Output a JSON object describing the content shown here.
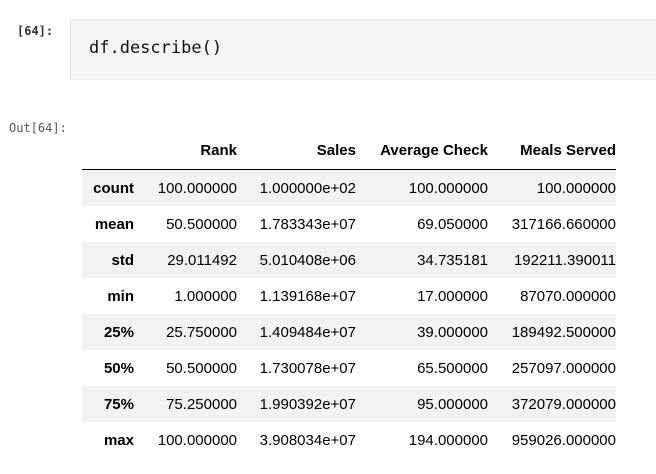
{
  "cell": {
    "in_prompt": "[64]:",
    "code": "df.describe()",
    "out_prompt": "Out[64]:"
  },
  "table": {
    "columns": [
      "",
      "Rank",
      "Sales",
      "Average Check",
      "Meals Served"
    ],
    "rows": [
      {
        "index": "count",
        "values": [
          "100.000000",
          "1.000000e+02",
          "100.000000",
          "100.000000"
        ]
      },
      {
        "index": "mean",
        "values": [
          "50.500000",
          "1.783343e+07",
          "69.050000",
          "317166.660000"
        ]
      },
      {
        "index": "std",
        "values": [
          "29.011492",
          "5.010408e+06",
          "34.735181",
          "192211.390011"
        ]
      },
      {
        "index": "min",
        "values": [
          "1.000000",
          "1.139168e+07",
          "17.000000",
          "87070.000000"
        ]
      },
      {
        "index": "25%",
        "values": [
          "25.750000",
          "1.409484e+07",
          "39.000000",
          "189492.500000"
        ]
      },
      {
        "index": "50%",
        "values": [
          "50.500000",
          "1.730078e+07",
          "65.500000",
          "257097.000000"
        ]
      },
      {
        "index": "75%",
        "values": [
          "75.250000",
          "1.990392e+07",
          "95.000000",
          "372079.000000"
        ]
      },
      {
        "index": "max",
        "values": [
          "100.000000",
          "3.908034e+07",
          "194.000000",
          "959026.000000"
        ]
      }
    ]
  }
}
